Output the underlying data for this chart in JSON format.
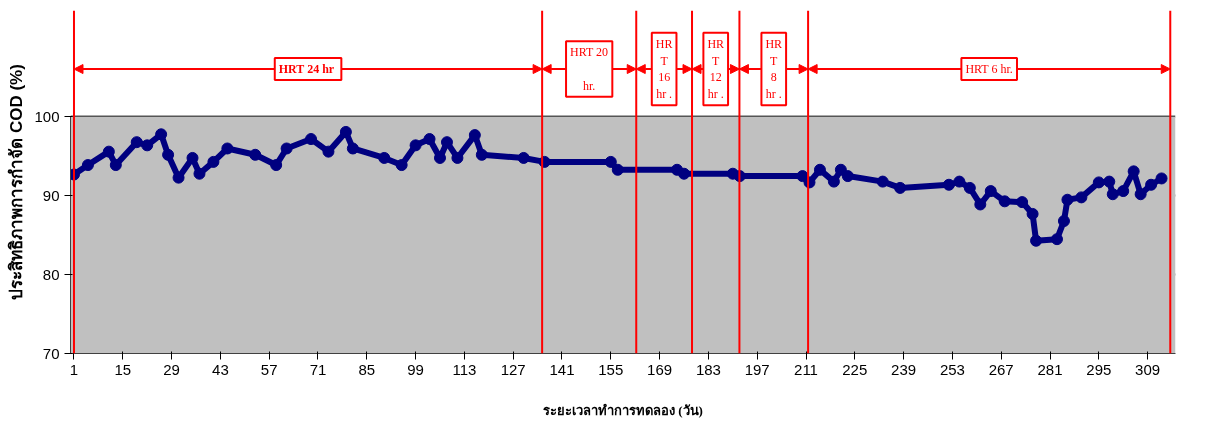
{
  "chart_data": {
    "type": "line",
    "xlabel": "ระยะเวลาทำการทดลอง (วัน)",
    "ylabel": "ประสิทธิภาพการกำจัด COD (%)",
    "xlim": [
      0,
      317
    ],
    "xticks": [
      1,
      15,
      29,
      43,
      57,
      71,
      85,
      99,
      113,
      127,
      141,
      155,
      169,
      183,
      197,
      211,
      225,
      239,
      253,
      267,
      281,
      295,
      309
    ],
    "ylim": [
      70,
      100
    ],
    "yticks": [
      70,
      80,
      90,
      100
    ],
    "grid": "y",
    "marker": "circle",
    "line_style": "solid",
    "series": [
      {
        "color": "#000080",
        "x": [
          1,
          5,
          11,
          13,
          19,
          22,
          26,
          28,
          31,
          35,
          37,
          41,
          45,
          53,
          59,
          62,
          69,
          74,
          79,
          81,
          90,
          95,
          99,
          103,
          106,
          108,
          111,
          116,
          118,
          130,
          136,
          155,
          157,
          174,
          176,
          190,
          192,
          210,
          212,
          215,
          219,
          221,
          223,
          233,
          238,
          252,
          255,
          258,
          261,
          264,
          268,
          273,
          276,
          277,
          283,
          285,
          286,
          290,
          295,
          298,
          299,
          302,
          305,
          307,
          310,
          313
        ],
        "values": [
          92.7,
          93.9,
          95.6,
          93.9,
          96.8,
          96.4,
          97.8,
          95.2,
          92.3,
          94.8,
          92.8,
          94.3,
          96.0,
          95.2,
          93.9,
          96.0,
          97.2,
          95.6,
          98.1,
          96.0,
          94.8,
          93.9,
          96.4,
          97.2,
          94.8,
          96.8,
          94.8,
          97.7,
          95.2,
          94.8,
          94.3,
          94.3,
          93.3,
          93.3,
          92.8,
          92.8,
          92.5,
          92.5,
          91.7,
          93.3,
          91.8,
          93.3,
          92.5,
          91.8,
          91.0,
          91.4,
          91.8,
          91.0,
          88.9,
          90.6,
          89.3,
          89.2,
          87.7,
          84.3,
          84.5,
          86.8,
          89.5,
          89.8,
          91.7,
          91.8,
          90.2,
          90.6,
          93.1,
          90.2,
          91.4,
          92.2
        ]
      }
    ],
    "ref_lines": [
      {
        "axis": "x",
        "value": 1,
        "color": "#ff0000"
      },
      {
        "axis": "x",
        "value": 135.3,
        "color": "#ff0000"
      },
      {
        "axis": "x",
        "value": 162.3,
        "color": "#ff0000"
      },
      {
        "axis": "x",
        "value": 178.3,
        "color": "#ff0000"
      },
      {
        "axis": "x",
        "value": 191.9,
        "color": "#ff0000"
      },
      {
        "axis": "x",
        "value": 211.6,
        "color": "#ff0000"
      },
      {
        "axis": "x",
        "value": 315.5,
        "color": "#ff0000"
      }
    ],
    "annotations": [
      "HRT 24  hr",
      "HRT 20\n\nhr.",
      "HR\nT\n16\nhr .",
      "HR\nT\n12\nhr .",
      "HR\nT\n8\nhr .",
      "HRT 6 hr."
    ]
  }
}
